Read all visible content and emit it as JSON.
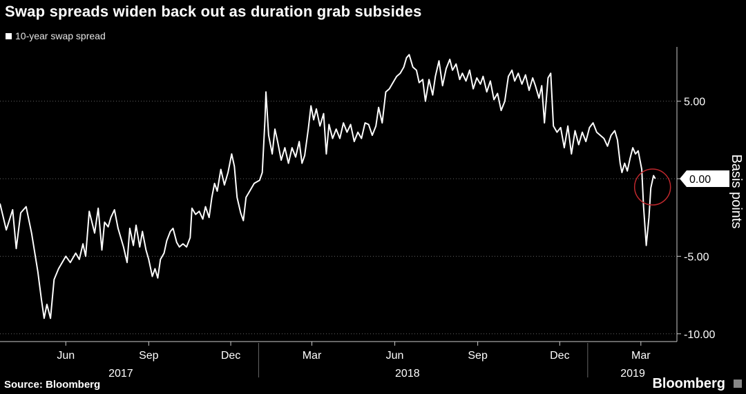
{
  "title": "Swap spreads widen back out as duration grab subsides",
  "legend": {
    "series_name": "10-year swap spread"
  },
  "footer": {
    "source": "Source: Bloomberg",
    "brand": "Bloomberg"
  },
  "colors": {
    "background": "#000000",
    "line": "#ffffff",
    "grid": "#666666",
    "highlight_circle": "#c0282d",
    "callout_bg": "#ffffff",
    "callout_text": "#000000"
  },
  "chart_data": {
    "type": "line",
    "title": "Swap spreads widen back out as duration grab subsides",
    "ylabel": "Basis points",
    "xlabel": "",
    "ylim": [
      -10.5,
      8.5
    ],
    "yticks": [
      -10,
      -5,
      0,
      5
    ],
    "ytick_labels": [
      "-10.00",
      "-5.00",
      "0.00",
      "5.00"
    ],
    "grid": true,
    "legend_position": "top-left",
    "xlim": [
      "2017-03-20",
      "2019-04-10"
    ],
    "month_ticks": [
      {
        "date": "2017-06-01",
        "label": "Jun"
      },
      {
        "date": "2017-09-01",
        "label": "Sep"
      },
      {
        "date": "2017-12-01",
        "label": "Dec"
      },
      {
        "date": "2018-03-01",
        "label": "Mar"
      },
      {
        "date": "2018-06-01",
        "label": "Jun"
      },
      {
        "date": "2018-09-01",
        "label": "Sep"
      },
      {
        "date": "2018-12-01",
        "label": "Dec"
      },
      {
        "date": "2019-03-01",
        "label": "Mar"
      }
    ],
    "year_labels": [
      {
        "label": "2017",
        "date": "2017-08-01"
      },
      {
        "label": "2018",
        "date": "2018-06-15"
      },
      {
        "label": "2019",
        "date": "2019-02-20"
      }
    ],
    "year_dividers": [
      "2018-01-01",
      "2019-01-01"
    ],
    "callout": {
      "value": 0.0,
      "label": "0.00"
    },
    "series": [
      {
        "name": "10-year swap spread",
        "points": [
          [
            "2017-03-20",
            -1.6
          ],
          [
            "2017-03-27",
            -3.3
          ],
          [
            "2017-04-03",
            -2.0
          ],
          [
            "2017-04-07",
            -4.5
          ],
          [
            "2017-04-12",
            -2.2
          ],
          [
            "2017-04-18",
            -1.8
          ],
          [
            "2017-04-24",
            -3.5
          ],
          [
            "2017-05-01",
            -6.0
          ],
          [
            "2017-05-05",
            -7.8
          ],
          [
            "2017-05-08",
            -9.0
          ],
          [
            "2017-05-11",
            -8.1
          ],
          [
            "2017-05-15",
            -9.0
          ],
          [
            "2017-05-19",
            -6.5
          ],
          [
            "2017-05-24",
            -5.8
          ],
          [
            "2017-06-01",
            -5.0
          ],
          [
            "2017-06-06",
            -5.4
          ],
          [
            "2017-06-12",
            -4.8
          ],
          [
            "2017-06-16",
            -5.2
          ],
          [
            "2017-06-20",
            -4.2
          ],
          [
            "2017-06-23",
            -5.0
          ],
          [
            "2017-06-27",
            -2.1
          ],
          [
            "2017-07-03",
            -3.5
          ],
          [
            "2017-07-07",
            -1.9
          ],
          [
            "2017-07-11",
            -4.6
          ],
          [
            "2017-07-14",
            -2.8
          ],
          [
            "2017-07-18",
            -3.1
          ],
          [
            "2017-07-21",
            -2.5
          ],
          [
            "2017-07-25",
            -2.0
          ],
          [
            "2017-07-29",
            -3.2
          ],
          [
            "2017-08-04",
            -4.4
          ],
          [
            "2017-08-08",
            -5.4
          ],
          [
            "2017-08-11",
            -3.2
          ],
          [
            "2017-08-15",
            -4.3
          ],
          [
            "2017-08-18",
            -3.0
          ],
          [
            "2017-08-22",
            -4.4
          ],
          [
            "2017-08-25",
            -3.4
          ],
          [
            "2017-08-29",
            -4.6
          ],
          [
            "2017-09-01",
            -5.2
          ],
          [
            "2017-09-05",
            -6.3
          ],
          [
            "2017-09-08",
            -5.8
          ],
          [
            "2017-09-11",
            -6.4
          ],
          [
            "2017-09-14",
            -5.2
          ],
          [
            "2017-09-18",
            -4.8
          ],
          [
            "2017-09-21",
            -4.0
          ],
          [
            "2017-09-25",
            -3.4
          ],
          [
            "2017-09-28",
            -3.2
          ],
          [
            "2017-10-02",
            -4.1
          ],
          [
            "2017-10-05",
            -4.4
          ],
          [
            "2017-10-09",
            -4.2
          ],
          [
            "2017-10-13",
            -4.4
          ],
          [
            "2017-10-17",
            -3.8
          ],
          [
            "2017-10-19",
            -1.9
          ],
          [
            "2017-10-23",
            -2.3
          ],
          [
            "2017-10-27",
            -2.1
          ],
          [
            "2017-10-31",
            -2.6
          ],
          [
            "2017-11-03",
            -1.8
          ],
          [
            "2017-11-07",
            -2.5
          ],
          [
            "2017-11-10",
            -1.2
          ],
          [
            "2017-11-13",
            -0.3
          ],
          [
            "2017-11-16",
            -0.8
          ],
          [
            "2017-11-20",
            0.6
          ],
          [
            "2017-11-24",
            -0.4
          ],
          [
            "2017-11-28",
            0.4
          ],
          [
            "2017-12-02",
            1.6
          ],
          [
            "2017-12-05",
            0.8
          ],
          [
            "2017-12-08",
            -1.2
          ],
          [
            "2017-12-12",
            -2.2
          ],
          [
            "2017-12-15",
            -2.7
          ],
          [
            "2017-12-18",
            -1.2
          ],
          [
            "2017-12-22",
            -0.8
          ],
          [
            "2017-12-27",
            -0.3
          ],
          [
            "2018-01-02",
            -0.1
          ],
          [
            "2018-01-05",
            0.4
          ],
          [
            "2018-01-08",
            3.8
          ],
          [
            "2018-01-09",
            5.6
          ],
          [
            "2018-01-12",
            2.8
          ],
          [
            "2018-01-16",
            1.6
          ],
          [
            "2018-01-19",
            3.2
          ],
          [
            "2018-01-22",
            2.4
          ],
          [
            "2018-01-26",
            1.2
          ],
          [
            "2018-01-30",
            2.0
          ],
          [
            "2018-02-03",
            1.0
          ],
          [
            "2018-02-07",
            2.0
          ],
          [
            "2018-02-11",
            1.4
          ],
          [
            "2018-02-15",
            2.4
          ],
          [
            "2018-02-18",
            1.0
          ],
          [
            "2018-02-21",
            1.5
          ],
          [
            "2018-02-25",
            3.2
          ],
          [
            "2018-02-28",
            4.7
          ],
          [
            "2018-03-03",
            3.8
          ],
          [
            "2018-03-06",
            4.5
          ],
          [
            "2018-03-10",
            3.4
          ],
          [
            "2018-03-14",
            4.2
          ],
          [
            "2018-03-17",
            1.6
          ],
          [
            "2018-03-20",
            3.5
          ],
          [
            "2018-03-24",
            2.6
          ],
          [
            "2018-03-28",
            3.2
          ],
          [
            "2018-04-01",
            2.6
          ],
          [
            "2018-04-05",
            3.6
          ],
          [
            "2018-04-09",
            3.0
          ],
          [
            "2018-04-13",
            3.5
          ],
          [
            "2018-04-17",
            2.4
          ],
          [
            "2018-04-21",
            3.0
          ],
          [
            "2018-04-25",
            2.6
          ],
          [
            "2018-04-29",
            3.6
          ],
          [
            "2018-05-03",
            3.5
          ],
          [
            "2018-05-07",
            2.8
          ],
          [
            "2018-05-11",
            3.4
          ],
          [
            "2018-05-14",
            4.6
          ],
          [
            "2018-05-18",
            3.6
          ],
          [
            "2018-05-22",
            5.6
          ],
          [
            "2018-05-26",
            5.8
          ],
          [
            "2018-05-30",
            6.2
          ],
          [
            "2018-06-03",
            6.6
          ],
          [
            "2018-06-07",
            6.8
          ],
          [
            "2018-06-11",
            7.2
          ],
          [
            "2018-06-14",
            7.8
          ],
          [
            "2018-06-17",
            8.0
          ],
          [
            "2018-06-21",
            7.2
          ],
          [
            "2018-06-25",
            7.0
          ],
          [
            "2018-06-28",
            6.2
          ],
          [
            "2018-07-02",
            6.4
          ],
          [
            "2018-07-05",
            5.0
          ],
          [
            "2018-07-09",
            6.4
          ],
          [
            "2018-07-13",
            5.4
          ],
          [
            "2018-07-16",
            6.6
          ],
          [
            "2018-07-20",
            7.6
          ],
          [
            "2018-07-24",
            6.0
          ],
          [
            "2018-07-28",
            7.1
          ],
          [
            "2018-08-01",
            7.7
          ],
          [
            "2018-08-04",
            7.0
          ],
          [
            "2018-08-08",
            7.4
          ],
          [
            "2018-08-12",
            6.4
          ],
          [
            "2018-08-15",
            6.8
          ],
          [
            "2018-08-19",
            6.3
          ],
          [
            "2018-08-23",
            7.0
          ],
          [
            "2018-08-27",
            5.8
          ],
          [
            "2018-08-31",
            6.5
          ],
          [
            "2018-09-04",
            6.1
          ],
          [
            "2018-09-07",
            6.6
          ],
          [
            "2018-09-11",
            5.6
          ],
          [
            "2018-09-15",
            6.3
          ],
          [
            "2018-09-19",
            5.1
          ],
          [
            "2018-09-23",
            5.5
          ],
          [
            "2018-09-27",
            4.4
          ],
          [
            "2018-10-01",
            5.0
          ],
          [
            "2018-10-05",
            6.6
          ],
          [
            "2018-10-09",
            7.0
          ],
          [
            "2018-10-12",
            6.3
          ],
          [
            "2018-10-16",
            6.8
          ],
          [
            "2018-10-20",
            6.1
          ],
          [
            "2018-10-24",
            6.7
          ],
          [
            "2018-10-28",
            5.7
          ],
          [
            "2018-11-01",
            6.5
          ],
          [
            "2018-11-04",
            6.0
          ],
          [
            "2018-11-08",
            5.2
          ],
          [
            "2018-11-11",
            6.0
          ],
          [
            "2018-11-14",
            3.6
          ],
          [
            "2018-11-18",
            6.5
          ],
          [
            "2018-11-21",
            6.8
          ],
          [
            "2018-11-24",
            3.4
          ],
          [
            "2018-11-28",
            3.0
          ],
          [
            "2018-12-02",
            3.3
          ],
          [
            "2018-12-06",
            2.0
          ],
          [
            "2018-12-10",
            3.4
          ],
          [
            "2018-12-14",
            1.6
          ],
          [
            "2018-12-18",
            3.1
          ],
          [
            "2018-12-22",
            2.2
          ],
          [
            "2018-12-26",
            3.0
          ],
          [
            "2018-12-30",
            2.4
          ],
          [
            "2019-01-03",
            3.3
          ],
          [
            "2019-01-07",
            3.6
          ],
          [
            "2019-01-11",
            3.0
          ],
          [
            "2019-01-15",
            2.8
          ],
          [
            "2019-01-19",
            2.6
          ],
          [
            "2019-01-23",
            2.1
          ],
          [
            "2019-01-27",
            2.8
          ],
          [
            "2019-01-31",
            3.1
          ],
          [
            "2019-02-03",
            2.5
          ],
          [
            "2019-02-06",
            1.0
          ],
          [
            "2019-02-08",
            0.4
          ],
          [
            "2019-02-11",
            1.0
          ],
          [
            "2019-02-14",
            0.5
          ],
          [
            "2019-02-17",
            1.3
          ],
          [
            "2019-02-20",
            2.0
          ],
          [
            "2019-02-23",
            1.6
          ],
          [
            "2019-02-26",
            1.8
          ],
          [
            "2019-02-28",
            1.2
          ],
          [
            "2019-03-02",
            0.6
          ],
          [
            "2019-03-04",
            -1.8
          ],
          [
            "2019-03-07",
            -4.3
          ],
          [
            "2019-03-10",
            -2.5
          ],
          [
            "2019-03-12",
            -0.6
          ],
          [
            "2019-03-15",
            0.2
          ],
          [
            "2019-03-17",
            0.0
          ]
        ]
      }
    ]
  }
}
